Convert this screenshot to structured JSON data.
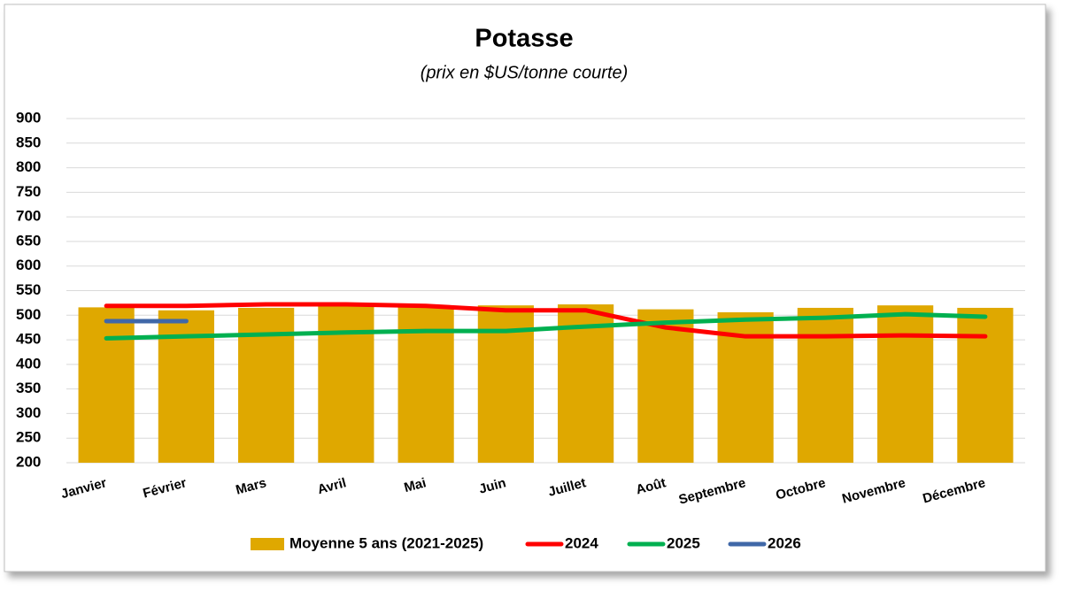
{
  "chart_data": {
    "type": "bar",
    "title": "Potasse",
    "subtitle": "(prix en $US/tonne courte)",
    "categories": [
      "Janvier",
      "Février",
      "Mars",
      "Avril",
      "Mai",
      "Juin",
      "Juillet",
      "Août",
      "Septembre",
      "Octobre",
      "Novembre",
      "Décembre"
    ],
    "series": [
      {
        "name": "Moyenne 5 ans (2021-2025)",
        "type": "bar",
        "color": "#DFA800",
        "values": [
          516,
          510,
          515,
          520,
          518,
          520,
          522,
          512,
          506,
          515,
          520,
          515
        ]
      },
      {
        "name": "2024",
        "type": "line",
        "color": "#FF0000",
        "values": [
          519,
          519,
          522,
          522,
          519,
          510,
          510,
          475,
          457,
          457,
          459,
          457
        ]
      },
      {
        "name": "2025",
        "type": "line",
        "color": "#00B050",
        "values": [
          453,
          457,
          461,
          465,
          468,
          468,
          477,
          485,
          491,
          495,
          502,
          497
        ]
      },
      {
        "name": "2026",
        "type": "line",
        "color": "#4068A8",
        "values": [
          488,
          488,
          null,
          null,
          null,
          null,
          null,
          null,
          null,
          null,
          null,
          null
        ]
      }
    ],
    "ylim": [
      200,
      900
    ],
    "yticks": [
      200,
      250,
      300,
      350,
      400,
      450,
      500,
      550,
      600,
      650,
      700,
      750,
      800,
      850,
      900
    ],
    "grid": true,
    "legend": "bottom"
  }
}
